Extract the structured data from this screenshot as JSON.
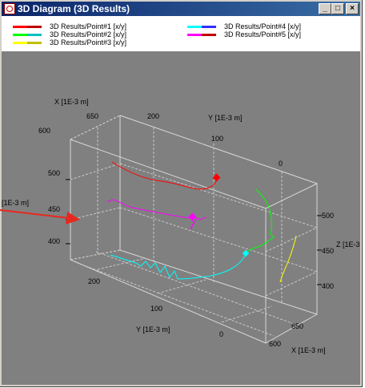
{
  "window": {
    "title": "3D Diagram (3D Results)",
    "buttons": {
      "minimize": "_",
      "maximize": "□",
      "close": "×"
    }
  },
  "legend": {
    "items": [
      {
        "label": "3D Results/Point#1 [x/y]",
        "color": "#ff0000",
        "color2": "#c00000"
      },
      {
        "label": "3D Results/Point#2 [x/y]",
        "color": "#00ff00",
        "color2": "#00c0c0"
      },
      {
        "label": "3D Results/Point#3 [x/y]",
        "color": "#ffff00",
        "color2": "#c0c000"
      },
      {
        "label": "3D Results/Point#4 [x/y]",
        "color": "#00ffff",
        "color2": "#3030ff"
      },
      {
        "label": "3D Results/Point#5 [x/y]",
        "color": "#ff00ff",
        "color2": "#c00000"
      }
    ]
  },
  "plot": {
    "x_axis_top_label": "X [1E-3 m]",
    "x_axis_bottom_label": "X [1E-3 m]",
    "y_axis_top_label": "Y [1E-3 m]",
    "y_axis_bottom_label": "Y [1E-3 m]",
    "z_axis_right_label": "Z  [1E-3",
    "z_axis_left_label": "[1E-3 m]",
    "top_x_ticks": [
      "650",
      "600"
    ],
    "top_y_ticks": [
      "200",
      "100",
      "0"
    ],
    "left_z_ticks": [
      "500",
      "450",
      "400"
    ],
    "right_z_ticks": [
      "500",
      "450",
      "400"
    ],
    "bottom_y_ticks": [
      "200",
      "100",
      "0"
    ],
    "bottom_x_ticks": [
      "650",
      "600"
    ],
    "background_color": "#808080"
  }
}
